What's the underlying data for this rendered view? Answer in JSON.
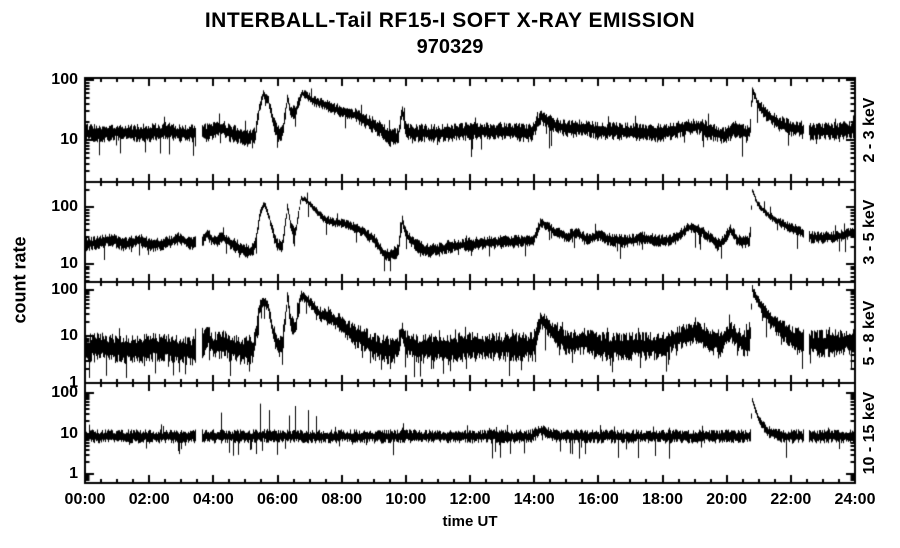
{
  "figure": {
    "background": "#ffffff",
    "foreground": "#000000"
  },
  "chart_data": {
    "type": "line",
    "title": "INTERBALL-Tail RF15-I SOFT X-RAY EMISSION",
    "subtitle": "970329",
    "xlabel": "time UT",
    "ylabel": "count rate",
    "yscale": "log",
    "xlim": [
      0,
      24
    ],
    "x_major_step_hours": 2,
    "x_minor_step_hours": 0.5,
    "xticks": [
      {
        "hour": 0,
        "label": "00:00"
      },
      {
        "hour": 2,
        "label": "02:00"
      },
      {
        "hour": 4,
        "label": "04:00"
      },
      {
        "hour": 6,
        "label": "06:00"
      },
      {
        "hour": 8,
        "label": "08:00"
      },
      {
        "hour": 10,
        "label": "10:00"
      },
      {
        "hour": 12,
        "label": "12:00"
      },
      {
        "hour": 14,
        "label": "14:00"
      },
      {
        "hour": 16,
        "label": "16:00"
      },
      {
        "hour": 18,
        "label": "18:00"
      },
      {
        "hour": 20,
        "label": "20:00"
      },
      {
        "hour": 22,
        "label": "22:00"
      },
      {
        "hour": 24,
        "label": "24:00"
      }
    ],
    "panels": [
      {
        "label": "2 - 3 keV",
        "ylim": [
          2.0,
          108
        ],
        "yticks": [
          {
            "value": 10,
            "label": "10"
          },
          {
            "value": 100,
            "label": "100"
          }
        ],
        "noise": {
          "spread": 1.45,
          "ref": 13,
          "down_prob": 0.06,
          "down_extra": 2.2,
          "up_prob": 0.02,
          "up_factor": 1.35,
          "seed": 11
        },
        "gaps": [
          [
            3.43,
            3.62
          ],
          [
            22.38,
            22.55
          ]
        ],
        "envelope": [
          [
            0,
            13
          ],
          [
            0.5,
            13
          ],
          [
            1,
            13.5
          ],
          [
            1.5,
            13
          ],
          [
            2,
            13
          ],
          [
            2.5,
            14
          ],
          [
            3,
            13
          ],
          [
            3.42,
            13
          ],
          [
            3.63,
            13
          ],
          [
            4.0,
            14
          ],
          [
            4.2,
            16
          ],
          [
            4.5,
            13
          ],
          [
            4.8,
            12
          ],
          [
            5.1,
            11
          ],
          [
            5.3,
            12
          ],
          [
            5.42,
            35
          ],
          [
            5.55,
            58
          ],
          [
            5.7,
            45
          ],
          [
            5.85,
            20
          ],
          [
            6.0,
            13
          ],
          [
            6.15,
            14
          ],
          [
            6.3,
            50
          ],
          [
            6.4,
            28
          ],
          [
            6.55,
            30
          ],
          [
            6.75,
            60
          ],
          [
            6.95,
            52
          ],
          [
            7.15,
            44
          ],
          [
            7.4,
            40
          ],
          [
            7.7,
            34
          ],
          [
            8.0,
            30
          ],
          [
            8.4,
            26
          ],
          [
            8.8,
            20
          ],
          [
            9.2,
            15
          ],
          [
            9.5,
            11
          ],
          [
            9.75,
            11
          ],
          [
            9.87,
            32
          ],
          [
            10.0,
            14
          ],
          [
            10.3,
            13
          ],
          [
            11,
            13
          ],
          [
            12,
            14
          ],
          [
            13,
            14
          ],
          [
            13.9,
            13
          ],
          [
            14.2,
            24
          ],
          [
            14.6,
            18
          ],
          [
            15.1,
            15
          ],
          [
            15.6,
            16
          ],
          [
            16,
            14
          ],
          [
            17,
            14
          ],
          [
            18,
            13
          ],
          [
            18.7,
            16
          ],
          [
            19.2,
            17
          ],
          [
            19.6,
            13
          ],
          [
            19.9,
            12
          ],
          [
            20.3,
            15
          ],
          [
            20.6,
            13
          ],
          [
            20.72,
            14
          ],
          [
            20.78,
            72
          ],
          [
            20.95,
            42
          ],
          [
            21.2,
            27
          ],
          [
            21.6,
            19
          ],
          [
            22.0,
            16
          ],
          [
            22.6,
            14
          ],
          [
            23.3,
            14
          ],
          [
            24,
            15
          ]
        ],
        "spikes": []
      },
      {
        "label": "3 - 5 keV",
        "ylim": [
          4.8,
          280
        ],
        "yticks": [
          {
            "value": 10,
            "label": "10"
          },
          {
            "value": 100,
            "label": "100"
          }
        ],
        "noise": {
          "spread": 1.35,
          "ref": 22,
          "down_prob": 0.05,
          "down_extra": 1.8,
          "up_prob": 0.02,
          "up_factor": 1.3,
          "seed": 22
        },
        "gaps": [
          [
            3.43,
            3.62
          ],
          [
            22.38,
            22.55
          ]
        ],
        "envelope": [
          [
            0,
            22
          ],
          [
            0.4,
            24
          ],
          [
            0.8,
            27
          ],
          [
            1.2,
            22
          ],
          [
            1.7,
            26
          ],
          [
            2.1,
            21
          ],
          [
            2.6,
            24
          ],
          [
            2.9,
            28
          ],
          [
            3.2,
            24
          ],
          [
            3.42,
            23
          ],
          [
            3.63,
            26
          ],
          [
            3.8,
            34
          ],
          [
            4.0,
            25
          ],
          [
            4.3,
            29
          ],
          [
            4.6,
            22
          ],
          [
            4.9,
            18
          ],
          [
            5.15,
            16
          ],
          [
            5.3,
            22
          ],
          [
            5.45,
            80
          ],
          [
            5.58,
            115
          ],
          [
            5.72,
            70
          ],
          [
            5.88,
            30
          ],
          [
            6.0,
            21
          ],
          [
            6.15,
            22
          ],
          [
            6.3,
            105
          ],
          [
            6.4,
            45
          ],
          [
            6.55,
            35
          ],
          [
            6.72,
            145
          ],
          [
            6.85,
            135
          ],
          [
            7.0,
            115
          ],
          [
            7.2,
            85
          ],
          [
            7.45,
            62
          ],
          [
            7.7,
            55
          ],
          [
            8.0,
            52
          ],
          [
            8.3,
            46
          ],
          [
            8.7,
            36
          ],
          [
            9.0,
            27
          ],
          [
            9.25,
            16
          ],
          [
            9.5,
            14
          ],
          [
            9.75,
            17
          ],
          [
            9.87,
            62
          ],
          [
            10.0,
            32
          ],
          [
            10.3,
            22
          ],
          [
            10.6,
            17
          ],
          [
            11.0,
            18
          ],
          [
            11.5,
            21
          ],
          [
            12.0,
            22
          ],
          [
            12.7,
            24
          ],
          [
            13.4,
            25
          ],
          [
            13.95,
            26
          ],
          [
            14.2,
            55
          ],
          [
            14.6,
            38
          ],
          [
            15.0,
            30
          ],
          [
            15.3,
            36
          ],
          [
            15.6,
            27
          ],
          [
            16.0,
            32
          ],
          [
            16.4,
            26
          ],
          [
            16.9,
            25
          ],
          [
            17.4,
            29
          ],
          [
            17.9,
            25
          ],
          [
            18.4,
            28
          ],
          [
            18.8,
            44
          ],
          [
            19.15,
            40
          ],
          [
            19.5,
            28
          ],
          [
            19.8,
            22
          ],
          [
            20.1,
            40
          ],
          [
            20.35,
            26
          ],
          [
            20.6,
            24
          ],
          [
            20.72,
            28
          ],
          [
            20.78,
            205
          ],
          [
            20.95,
            115
          ],
          [
            21.2,
            80
          ],
          [
            21.5,
            60
          ],
          [
            21.9,
            45
          ],
          [
            22.37,
            36
          ],
          [
            22.56,
            30
          ],
          [
            23.0,
            29
          ],
          [
            23.5,
            31
          ],
          [
            24,
            37
          ]
        ],
        "spikes": []
      },
      {
        "label": "5 - 8 keV",
        "ylim": [
          1.0,
          148
        ],
        "yticks": [
          {
            "value": 1,
            "label": "1"
          },
          {
            "value": 10,
            "label": "10"
          },
          {
            "value": 100,
            "label": "100"
          }
        ],
        "noise": {
          "spread": 2.1,
          "ref": 6,
          "down_prob": 0.1,
          "down_extra": 2.5,
          "up_prob": 0.03,
          "up_factor": 1.4,
          "seed": 33
        },
        "gaps": [
          [
            3.43,
            3.62
          ],
          [
            22.38,
            22.55
          ]
        ],
        "envelope": [
          [
            0,
            5.5
          ],
          [
            0.5,
            6
          ],
          [
            1.0,
            5.5
          ],
          [
            1.5,
            5
          ],
          [
            2.0,
            6
          ],
          [
            2.5,
            5.5
          ],
          [
            3.0,
            5
          ],
          [
            3.42,
            5
          ],
          [
            3.63,
            5.5
          ],
          [
            3.8,
            10
          ],
          [
            4.0,
            6
          ],
          [
            4.3,
            7
          ],
          [
            4.6,
            5.5
          ],
          [
            5.0,
            5
          ],
          [
            5.25,
            5.5
          ],
          [
            5.42,
            40
          ],
          [
            5.55,
            60
          ],
          [
            5.7,
            45
          ],
          [
            5.85,
            12
          ],
          [
            6.0,
            6
          ],
          [
            6.15,
            7
          ],
          [
            6.3,
            70
          ],
          [
            6.4,
            18
          ],
          [
            6.55,
            16
          ],
          [
            6.72,
            80
          ],
          [
            6.9,
            62
          ],
          [
            7.1,
            45
          ],
          [
            7.35,
            28
          ],
          [
            7.6,
            26
          ],
          [
            7.9,
            20
          ],
          [
            8.2,
            13
          ],
          [
            8.6,
            9
          ],
          [
            9.0,
            6
          ],
          [
            9.4,
            5
          ],
          [
            9.75,
            5.5
          ],
          [
            9.87,
            14
          ],
          [
            10.0,
            7
          ],
          [
            10.4,
            5.5
          ],
          [
            11,
            5.5
          ],
          [
            12,
            6
          ],
          [
            13,
            6
          ],
          [
            13.95,
            6
          ],
          [
            14.2,
            24
          ],
          [
            14.6,
            11
          ],
          [
            15.1,
            7
          ],
          [
            15.5,
            8
          ],
          [
            16,
            6
          ],
          [
            17,
            6
          ],
          [
            18,
            6.5
          ],
          [
            18.7,
            11
          ],
          [
            19.1,
            12
          ],
          [
            19.5,
            8
          ],
          [
            19.8,
            7
          ],
          [
            20.1,
            13
          ],
          [
            20.4,
            8
          ],
          [
            20.6,
            7
          ],
          [
            20.72,
            9
          ],
          [
            20.78,
            105
          ],
          [
            21.0,
            50
          ],
          [
            21.3,
            26
          ],
          [
            21.7,
            14
          ],
          [
            22.1,
            9
          ],
          [
            22.37,
            8
          ],
          [
            22.56,
            7
          ],
          [
            23.2,
            7
          ],
          [
            24,
            8
          ]
        ],
        "spikes": []
      },
      {
        "label": "10 - 15 keV",
        "ylim": [
          0.6,
          178
        ],
        "yticks": [
          {
            "value": 1,
            "label": "1"
          },
          {
            "value": 10,
            "label": "10"
          },
          {
            "value": 100,
            "label": "100"
          }
        ],
        "noise": {
          "spread": 1.5,
          "ref": 8.5,
          "down_prob": 0.07,
          "down_extra": 2.5,
          "up_prob": 0.02,
          "up_factor": 1.4,
          "seed": 44
        },
        "gaps": [
          [
            3.43,
            3.62
          ],
          [
            22.38,
            22.55
          ]
        ],
        "envelope": [
          [
            0,
            8.5
          ],
          [
            3.42,
            8.5
          ],
          [
            3.63,
            8.5
          ],
          [
            5.3,
            8.5
          ],
          [
            5.45,
            9
          ],
          [
            6.0,
            8.5
          ],
          [
            13.9,
            8.5
          ],
          [
            14.2,
            12
          ],
          [
            14.6,
            9
          ],
          [
            15.0,
            8.5
          ],
          [
            20.6,
            8.5
          ],
          [
            20.73,
            9
          ],
          [
            20.78,
            68
          ],
          [
            20.9,
            35
          ],
          [
            21.05,
            18
          ],
          [
            21.3,
            11
          ],
          [
            21.6,
            9
          ],
          [
            22.0,
            8.5
          ],
          [
            24,
            8.5
          ]
        ],
        "spikes": [
          [
            4.25,
            33
          ],
          [
            5.45,
            55
          ],
          [
            5.72,
            38
          ],
          [
            6.35,
            28
          ],
          [
            6.55,
            48
          ],
          [
            6.95,
            38
          ],
          [
            7.2,
            27
          ],
          [
            9.9,
            18
          ],
          [
            11.9,
            16
          ],
          [
            16.5,
            15
          ],
          [
            18.2,
            14
          ]
        ]
      }
    ]
  }
}
